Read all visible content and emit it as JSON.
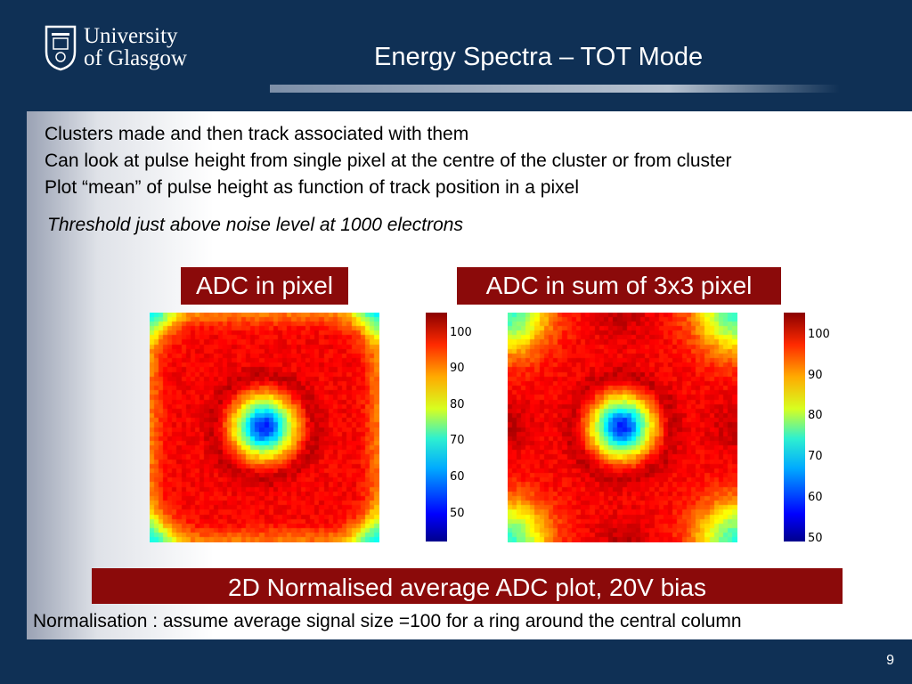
{
  "logo": {
    "line1": "University",
    "line2": "of Glasgow"
  },
  "title": "Energy Spectra – TOT Mode",
  "bullets": [
    "Clusters made and then track associated with them",
    "Can look at pulse height from single pixel at the centre of the cluster or from cluster",
    "Plot “mean” of pulse height as function of track position in a pixel"
  ],
  "note": "Threshold just above noise level at 1000 electrons",
  "plots": [
    {
      "label": "ADC in pixel",
      "colorbar_ticks": [
        "100",
        "90",
        "80",
        "70",
        "60",
        "50"
      ]
    },
    {
      "label": "ADC in sum of 3x3 pixel",
      "colorbar_ticks": [
        "100",
        "90",
        "80",
        "70",
        "60",
        "50"
      ]
    }
  ],
  "caption": "2D Normalised average ADC plot, 20V bias",
  "normalisation": "Normalisation : assume average signal size =100 for a ring around the central column",
  "page_number": "9",
  "colors": {
    "background": "#0f3055",
    "label_box": "#8b0a0a"
  }
}
